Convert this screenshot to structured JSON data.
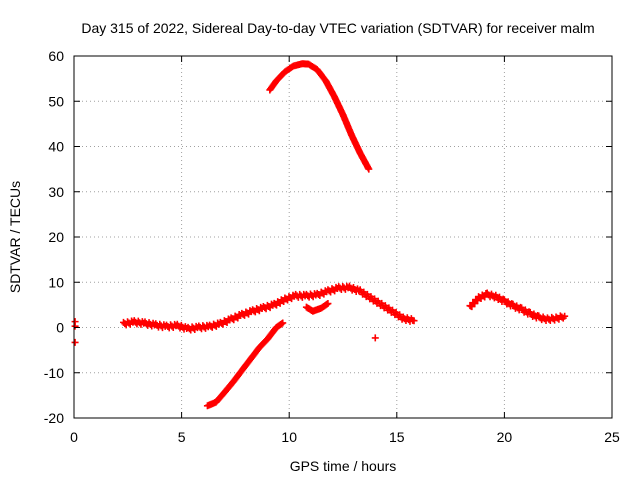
{
  "chart_data": {
    "type": "scatter",
    "title": "Day 315 of 2022, Sidereal Day-to-day VTEC variation (SDTVAR) for receiver malm",
    "xlabel": "GPS time / hours",
    "ylabel": "SDTVAR / TECUs",
    "xlim": [
      0,
      25
    ],
    "ylim": [
      -20,
      60
    ],
    "xticks": [
      0,
      5,
      10,
      15,
      20,
      25
    ],
    "yticks": [
      -20,
      -10,
      0,
      10,
      20,
      30,
      40,
      50,
      60
    ],
    "xtick_labels": [
      "0",
      "5",
      "10",
      "15",
      "20",
      "25"
    ],
    "ytick_labels": [
      "-20",
      "-10",
      "0",
      "10",
      "20",
      "30",
      "40",
      "50",
      "60"
    ],
    "grid": true,
    "marker": "+",
    "color": "#ff0000",
    "series": [
      {
        "name": "isolated points near 0h",
        "x": [
          0.05,
          0.05,
          0.05
        ],
        "y": [
          1.3,
          0.3,
          -3.3
        ]
      },
      {
        "name": "high arc",
        "x": [
          9.1,
          9.4,
          9.8,
          10.2,
          10.6,
          10.9,
          11.3,
          11.7,
          12.1,
          12.5,
          12.9,
          13.3,
          13.7
        ],
        "y": [
          52.5,
          54.5,
          56.5,
          57.8,
          58.3,
          58.2,
          57.0,
          54.5,
          51.0,
          47.0,
          42.5,
          38.5,
          35.0
        ]
      },
      {
        "name": "descending branch",
        "x": [
          6.2,
          6.6,
          7.0,
          7.4,
          7.8,
          8.2,
          8.6,
          9.0,
          9.4,
          9.7
        ],
        "y": [
          -17.3,
          -16.5,
          -14.3,
          -12.0,
          -9.5,
          -7.0,
          -4.5,
          -2.5,
          0.0,
          1.0
        ]
      },
      {
        "name": "main band",
        "x": [
          2.3,
          2.8,
          3.3,
          3.8,
          4.3,
          4.8,
          5.3,
          5.8,
          6.3,
          6.8,
          7.3,
          7.8,
          8.3,
          8.8,
          9.3,
          9.8,
          10.3,
          10.8,
          11.3,
          11.8,
          12.3,
          12.8,
          13.3,
          13.8,
          14.3,
          14.8,
          15.3,
          15.8
        ],
        "y": [
          0.8,
          1.2,
          0.9,
          0.5,
          0.2,
          0.4,
          -0.3,
          0.0,
          0.2,
          0.8,
          1.8,
          2.8,
          3.6,
          4.3,
          5.0,
          6.2,
          7.0,
          7.0,
          7.2,
          8.0,
          8.7,
          8.8,
          8.0,
          6.5,
          5.0,
          3.5,
          2.0,
          1.5
        ]
      },
      {
        "name": "small dip segment",
        "x": [
          10.8,
          11.1,
          11.5,
          11.8
        ],
        "y": [
          4.5,
          3.6,
          4.3,
          5.3
        ]
      },
      {
        "name": "evening band",
        "x": [
          18.4,
          18.8,
          19.2,
          19.6,
          20.0,
          20.4,
          20.8,
          21.2,
          21.6,
          22.0,
          22.4,
          22.8
        ],
        "y": [
          4.5,
          6.5,
          7.3,
          6.8,
          5.8,
          4.8,
          4.0,
          3.0,
          2.2,
          1.8,
          2.0,
          2.5
        ]
      },
      {
        "name": "isolated point near 14h",
        "x": [
          14.0
        ],
        "y": [
          -2.3
        ]
      }
    ]
  }
}
